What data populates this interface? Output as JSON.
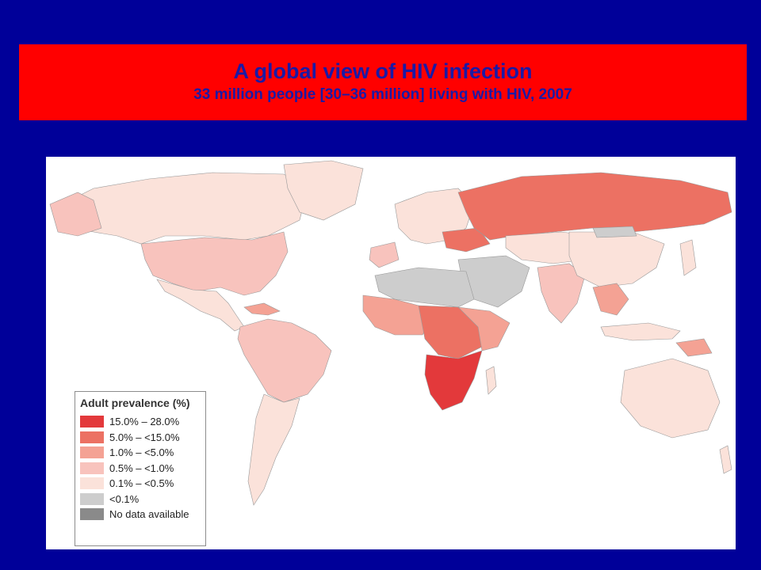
{
  "title": {
    "main": "A global view of HIV infection",
    "subtitle": "33 million people [30–36 million] living with HIV, 2007"
  },
  "legend": {
    "title": "Adult prevalence (%)",
    "items": [
      {
        "label": "15.0% – 28.0%",
        "color": "#e3393b"
      },
      {
        "label": "5.0% – <15.0%",
        "color": "#ec7163"
      },
      {
        "label": "1.0% – <5.0%",
        "color": "#f4a294"
      },
      {
        "label": "0.5% – <1.0%",
        "color": "#f8c3bd"
      },
      {
        "label": "0.1% – <0.5%",
        "color": "#fbe2da"
      },
      {
        "label": "<0.1%",
        "color": "#cdcdcd"
      },
      {
        "label": "No data available",
        "color": "#8a8a8a"
      }
    ]
  },
  "colors": {
    "background": "#000099",
    "banner": "#ff0000",
    "title_text": "#1a1aa6"
  }
}
